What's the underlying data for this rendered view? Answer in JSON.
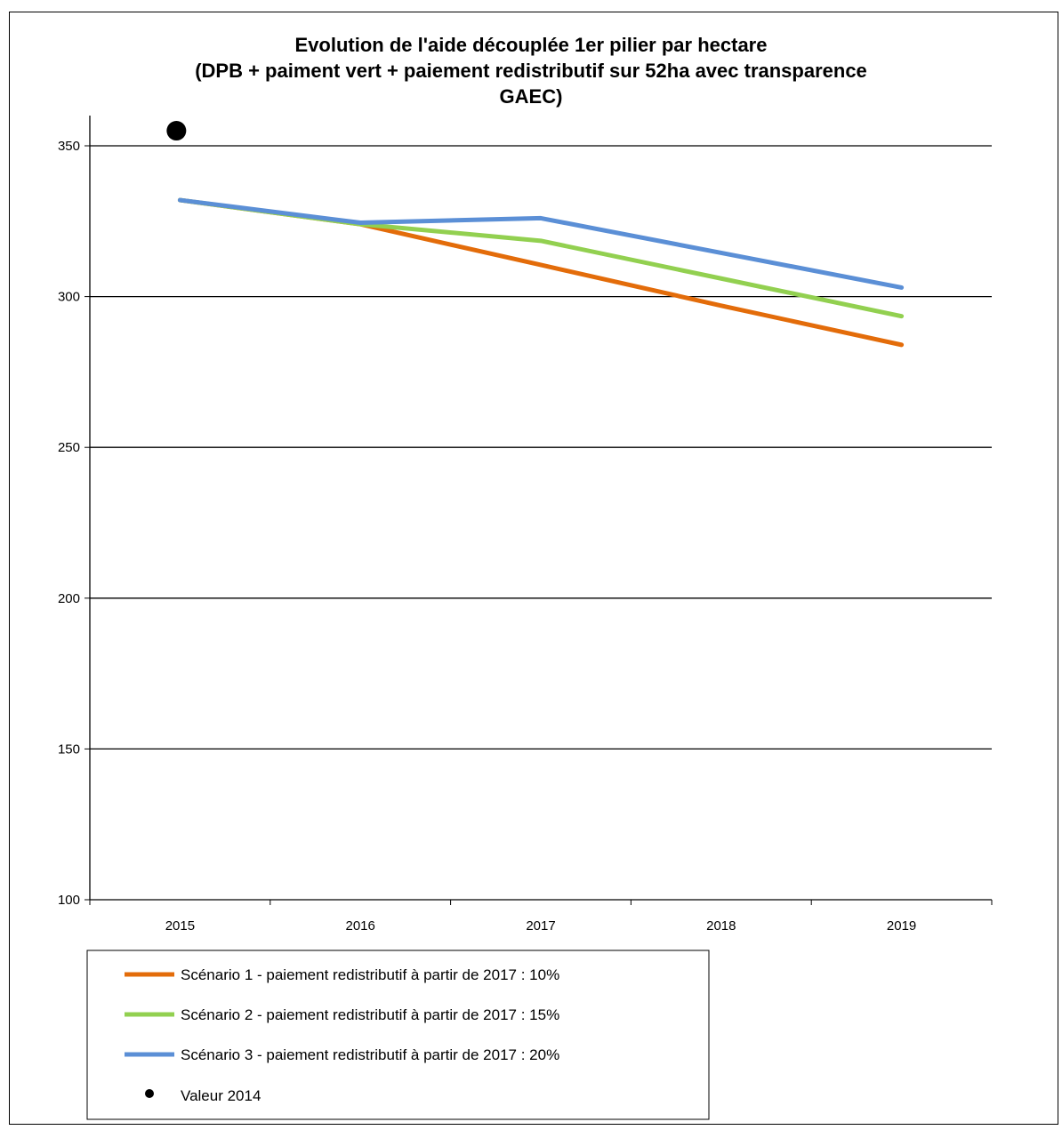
{
  "chart_data": {
    "type": "line",
    "title": [
      "Evolution de l'aide découplée 1er pilier par hectare",
      "(DPB + paiment vert + paiement redistributif sur 52ha avec transparence",
      "GAEC)"
    ],
    "xlabel": "",
    "ylabel": "",
    "categories": [
      "2015",
      "2016",
      "2017",
      "2018",
      "2019"
    ],
    "ylim": [
      100,
      350
    ],
    "yticks": [
      "100",
      "150",
      "200",
      "250",
      "300",
      "350"
    ],
    "grid": true,
    "legend_position": "bottom-left",
    "series": [
      {
        "name": "Scénario 1 - paiement redistributif à partir de 2017 : 10%",
        "color": "#E36C0A",
        "values": [
          332,
          324,
          310.5,
          297,
          284
        ]
      },
      {
        "name": "Scénario 2 - paiement redistributif à partir de 2017 : 15%",
        "color": "#92D050",
        "values": [
          332,
          324,
          318.5,
          306,
          293.5
        ]
      },
      {
        "name": "Scénario 3 - paiement redistributif à partir de 2017 : 20%",
        "color": "#5B8FD6",
        "values": [
          332,
          324.5,
          326,
          314.5,
          303
        ]
      }
    ],
    "markers": [
      {
        "name": "Valeur 2014",
        "color": "#000000",
        "x_position": "before 2015",
        "value": 355
      }
    ]
  }
}
